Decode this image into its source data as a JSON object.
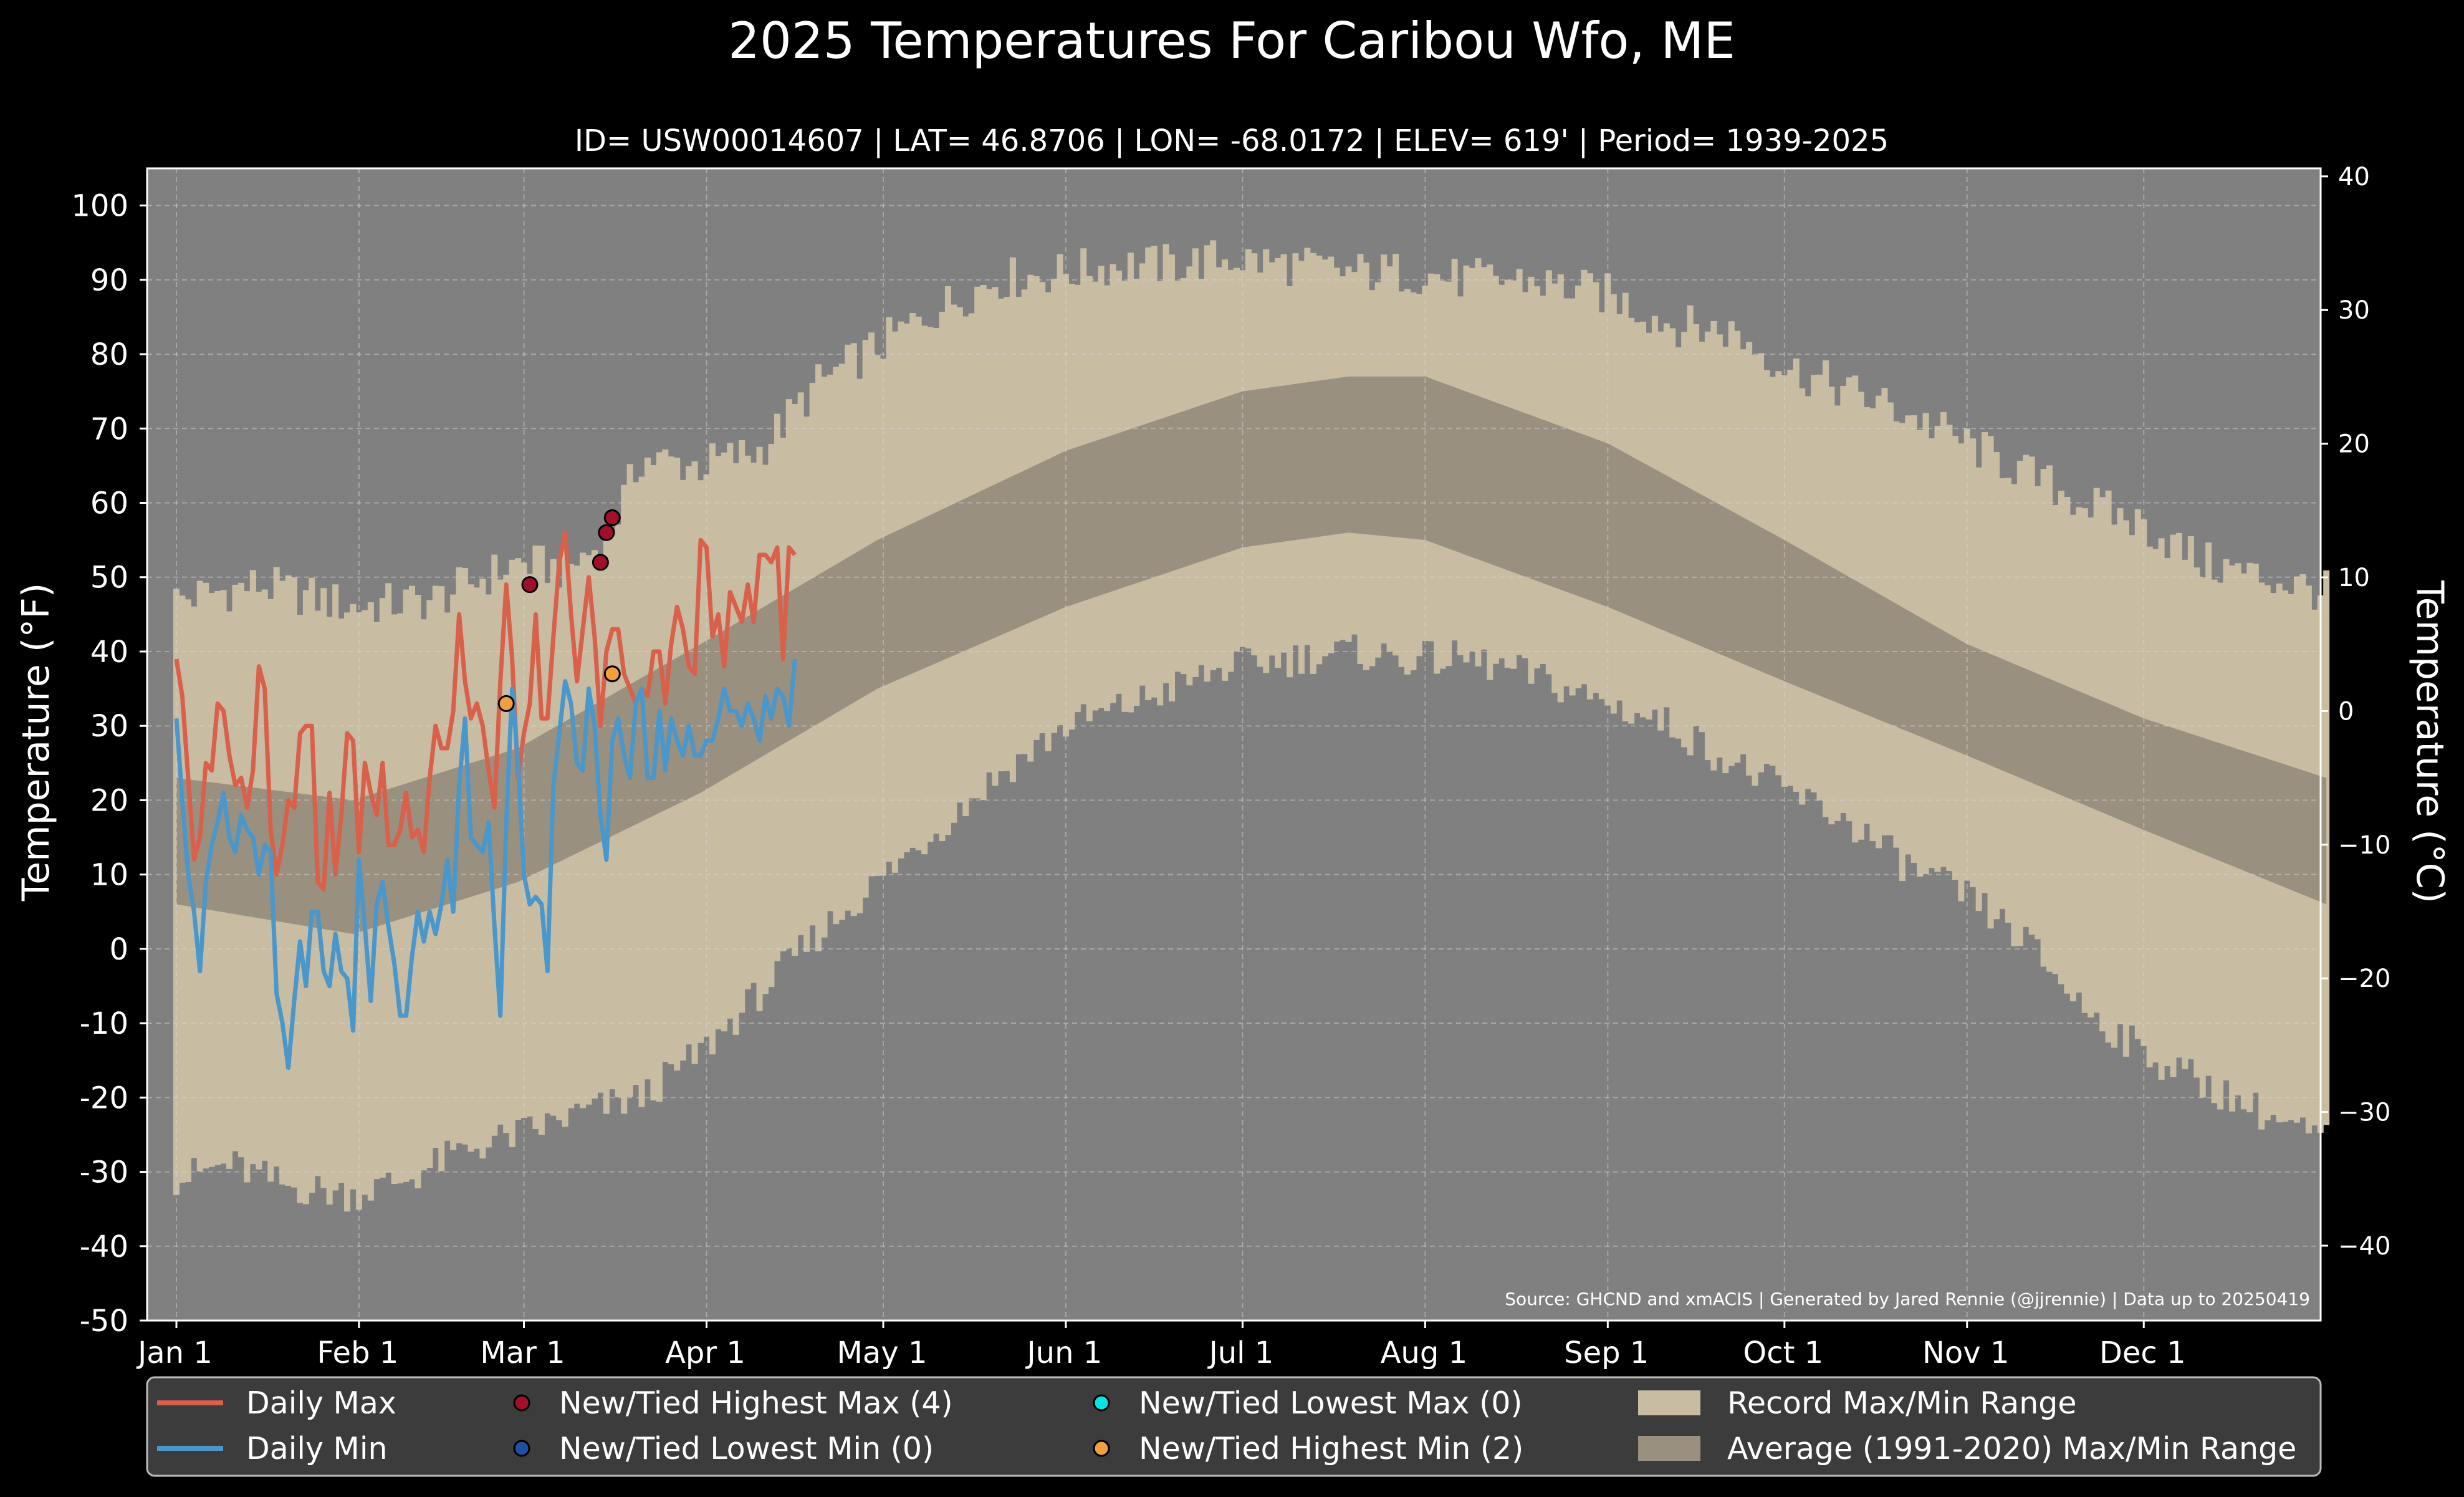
{
  "chart_data": {
    "type": "line",
    "title": "2025 Temperatures For Caribou Wfo, ME",
    "subtitle": "ID= USW00014607 | LAT= 46.8706 | LON= -68.0172 | ELEV= 619' | Period= 1939-2025",
    "ylabel": "Temperature ( $^\\circ$F)",
    "ylabel_display": "Temperature (°F)",
    "ylabel_right_display": "Temperature (°C)",
    "source_note": "Source: GHCND and xmACIS | Generated by Jared Rennie (@jjrennie) | Data up to 20250419",
    "xlim": [
      1,
      366
    ],
    "ylim": [
      -50,
      105
    ],
    "ylim_c": [
      -45.6,
      40.6
    ],
    "grid": true,
    "legend_placement": "bottom",
    "x_ticks": [
      {
        "day": 1,
        "label": "Jan 1"
      },
      {
        "day": 32,
        "label": "Feb 1"
      },
      {
        "day": 60,
        "label": "Mar 1"
      },
      {
        "day": 91,
        "label": "Apr 1"
      },
      {
        "day": 121,
        "label": "May 1"
      },
      {
        "day": 152,
        "label": "Jun 1"
      },
      {
        "day": 182,
        "label": "Jul 1"
      },
      {
        "day": 213,
        "label": "Aug 1"
      },
      {
        "day": 244,
        "label": "Sep 1"
      },
      {
        "day": 274,
        "label": "Oct 1"
      },
      {
        "day": 305,
        "label": "Nov 1"
      },
      {
        "day": 335,
        "label": "Dec 1"
      }
    ],
    "y_ticks_f": [
      -50,
      -40,
      -30,
      -20,
      -10,
      0,
      10,
      20,
      30,
      40,
      50,
      60,
      70,
      80,
      90,
      100
    ],
    "y_tick_labels_f": [
      "-50",
      "-40",
      "-30",
      "-20",
      "-10",
      "0",
      "10",
      "20",
      "30",
      "40",
      "50",
      "60",
      "70",
      "80",
      "90",
      "100"
    ],
    "y_ticks_c": [
      -40,
      -30,
      -20,
      -10,
      0,
      10,
      20,
      30,
      40
    ],
    "y_tick_labels_c": [
      "−40",
      "−30",
      "−20",
      "−10",
      "0",
      "10",
      "20",
      "30",
      "40"
    ],
    "colors": {
      "background": "#808080",
      "record_range": "#c8bca3",
      "normal_range": "#9a9080",
      "daily_max": "#d9604a",
      "daily_min": "#4a97cc",
      "highest_max": "#a0102a",
      "lowest_min": "#1f4fa0",
      "lowest_max": "#00e5e5",
      "highest_min": "#f0a040",
      "frame": "#ffffff",
      "legend_bg": "#3c3c3c"
    },
    "record_max_anchors": {
      "days": [
        1,
        15,
        31,
        45,
        59,
        67,
        74,
        80,
        90,
        100,
        110,
        120,
        130,
        140,
        152,
        160,
        170,
        180,
        190,
        200,
        210,
        220,
        230,
        244,
        255,
        265,
        275,
        285,
        295,
        305,
        315,
        325,
        335,
        345,
        355,
        366
      ],
      "values": [
        47,
        49,
        46,
        47,
        52,
        51,
        55,
        66,
        65,
        67,
        76,
        81,
        86,
        90,
        91,
        92,
        92,
        93,
        92,
        91,
        91,
        90,
        90,
        88,
        84,
        83,
        78,
        75,
        72,
        68,
        64,
        60,
        57,
        52,
        50,
        48
      ]
    },
    "record_min_anchors": {
      "days": [
        1,
        10,
        20,
        31,
        40,
        50,
        59,
        70,
        80,
        90,
        100,
        110,
        120,
        130,
        140,
        152,
        160,
        170,
        180,
        190,
        200,
        210,
        220,
        230,
        244,
        255,
        265,
        275,
        285,
        295,
        305,
        315,
        325,
        335,
        345,
        355,
        366
      ],
      "values": [
        -31,
        -29,
        -32,
        -33,
        -31,
        -27,
        -25,
        -22,
        -20,
        -14,
        -6,
        2,
        9,
        16,
        23,
        30,
        32,
        35,
        38,
        39,
        40,
        39,
        39,
        37,
        33,
        30,
        25,
        21,
        17,
        11,
        7,
        1,
        -8,
        -14,
        -18,
        -22,
        -26
      ]
    },
    "series": [
      {
        "name": "Daily Max",
        "values": [
          39,
          34,
          23,
          12,
          15,
          25,
          24,
          33,
          32,
          26,
          22,
          23,
          19,
          24,
          38,
          35,
          16,
          10,
          14,
          20,
          19,
          29,
          30,
          30,
          9,
          8,
          21,
          10,
          18,
          29,
          28,
          13,
          25,
          21,
          18,
          25,
          14,
          14,
          16,
          21,
          15,
          16,
          13,
          23,
          30,
          27,
          27,
          32,
          45,
          36,
          31,
          33,
          30,
          24,
          19,
          36,
          49,
          39,
          23,
          29,
          33,
          45,
          31,
          31,
          42,
          52,
          56,
          45,
          36,
          43,
          50,
          42,
          30,
          40,
          43,
          43,
          37,
          35,
          33,
          35,
          34,
          40,
          40,
          33,
          41,
          46,
          43,
          38,
          37,
          55,
          54,
          42,
          45,
          38,
          48,
          46,
          44,
          49,
          44,
          53,
          53,
          52,
          54,
          39,
          54,
          53
        ]
      },
      {
        "name": "Daily Min",
        "values": [
          31,
          20,
          10,
          5,
          -3,
          9,
          14,
          17,
          21,
          15,
          13,
          18,
          16,
          15,
          10,
          14,
          13,
          -6,
          -10,
          -16,
          -7,
          1,
          -5,
          5,
          5,
          -3,
          -5,
          2,
          -3,
          -4,
          -11,
          12,
          3,
          -7,
          6,
          9,
          3,
          -2,
          -9,
          -9,
          -1,
          5,
          1,
          5,
          2,
          6,
          12,
          5,
          22,
          31,
          15,
          14,
          13,
          17,
          3,
          -9,
          17,
          35,
          25,
          10,
          6,
          7,
          6,
          -3,
          22,
          29,
          36,
          33,
          25,
          24,
          35,
          30,
          18,
          12,
          28,
          31,
          26,
          23,
          33,
          35,
          23,
          23,
          32,
          24,
          31,
          28,
          26,
          30,
          26,
          26,
          28,
          28,
          31,
          35,
          32,
          32,
          30,
          33,
          31,
          28,
          34,
          31,
          35,
          34,
          30,
          39
        ]
      },
      {
        "name": "New/Tied Highest Max (4)",
        "points": [
          {
            "day": 61,
            "value": 49
          },
          {
            "day": 73,
            "value": 52
          },
          {
            "day": 74,
            "value": 56
          },
          {
            "day": 75,
            "value": 58
          }
        ]
      },
      {
        "name": "New/Tied Lowest Min (0)",
        "points": []
      },
      {
        "name": "New/Tied Lowest Max (0)",
        "points": []
      },
      {
        "name": "New/Tied Highest Min (2)",
        "points": [
          {
            "day": 57,
            "value": 33
          },
          {
            "day": 75,
            "value": 37
          }
        ]
      },
      {
        "name": "Record Max/Min Range",
        "note": "filled band between record max and record min"
      },
      {
        "name": "Average (1991-2020) Max/Min Range",
        "normal_max_anchors": {
          "days": [
            1,
            31,
            59,
            90,
            120,
            152,
            182,
            200,
            213,
            244,
            274,
            305,
            335,
            366
          ],
          "values": [
            23,
            20,
            27,
            41,
            55,
            67,
            75,
            77,
            77,
            68,
            55,
            41,
            31,
            23
          ]
        },
        "normal_min_anchors": {
          "days": [
            1,
            31,
            59,
            90,
            120,
            152,
            182,
            200,
            213,
            244,
            274,
            305,
            335,
            366
          ],
          "values": [
            6,
            2,
            9,
            21,
            35,
            46,
            54,
            56,
            55,
            46,
            36,
            26,
            16,
            6
          ]
        }
      }
    ]
  },
  "legend": {
    "items": [
      {
        "label": "Daily Max",
        "kind": "line",
        "color": "#d9604a"
      },
      {
        "label": "New/Tied Highest Max (4)",
        "kind": "dot",
        "color": "#a0102a"
      },
      {
        "label": "New/Tied Lowest Max (0)",
        "kind": "dot",
        "color": "#00e5e5"
      },
      {
        "label": "Record Max/Min Range",
        "kind": "patch",
        "color": "#c8bca3"
      },
      {
        "label": "Daily Min",
        "kind": "line",
        "color": "#4a97cc"
      },
      {
        "label": "New/Tied Lowest Min (0)",
        "kind": "dot",
        "color": "#1f4fa0"
      },
      {
        "label": "New/Tied Highest Min (2)",
        "kind": "dot",
        "color": "#f0a040"
      },
      {
        "label": "Average (1991-2020) Max/Min Range",
        "kind": "patch",
        "color": "#9a9080"
      }
    ]
  }
}
